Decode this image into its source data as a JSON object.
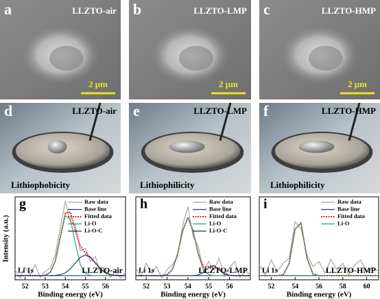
{
  "panels": [
    {
      "letter": "a",
      "label": "LLZTO-air",
      "scale_bar": "2 μm"
    },
    {
      "letter": "b",
      "label": "LLZTO-LMP",
      "scale_bar": "2 μm"
    },
    {
      "letter": "c",
      "label": "LLZTO-HMP",
      "scale_bar": "2 μm"
    }
  ],
  "photos": [
    {
      "letter": "d",
      "label": "LLZTO-air",
      "caption": "Lithiophobicity"
    },
    {
      "letter": "e",
      "label": "LLZTO-LMP",
      "caption": "Lithiophilicity"
    },
    {
      "letter": "f",
      "label": "LLZTO-HMP",
      "caption": "Lithiophilicity"
    }
  ],
  "y_axis_label": "Intensity (a.u.)",
  "chart_data": [
    {
      "type": "line",
      "letter": "g",
      "xlabel": "Binding energy (eV)",
      "annotations": [
        "Li 1s",
        "LLZTO-air"
      ],
      "x": [
        51.5,
        51.75,
        52,
        52.25,
        52.5,
        52.75,
        53,
        53.25,
        53.5,
        53.75,
        54,
        54.25,
        54.5,
        54.75,
        55,
        55.25,
        55.5,
        55.75,
        56,
        56.25,
        56.5,
        56.75,
        57
      ],
      "xlim": [
        51.5,
        57
      ],
      "xticks": [
        52,
        53,
        54,
        55,
        56
      ],
      "ylim": [
        0,
        100
      ],
      "series": [
        {
          "name": "Raw data",
          "color": "#a0a0a0",
          "style": "solid",
          "values": [
            12,
            2,
            15,
            6,
            18,
            3,
            10,
            14,
            30,
            62,
            95,
            70,
            66,
            35,
            38,
            22,
            28,
            8,
            14,
            3,
            10,
            2,
            9
          ]
        },
        {
          "name": "Base line",
          "color": "#1f3a7a",
          "style": "solid",
          "values": [
            5,
            5,
            5,
            5,
            5,
            5,
            5,
            5,
            5,
            5,
            5,
            5,
            5,
            5,
            5,
            5,
            5,
            5,
            5,
            5,
            5,
            5,
            5
          ]
        },
        {
          "name": "Fitted data",
          "color": "#e0202a",
          "style": "dotted",
          "values": [
            5,
            5,
            5,
            5,
            5,
            5,
            5.5,
            8.9,
            22.5,
            51.6,
            80.4,
            81.5,
            59.2,
            40.4,
            32.7,
            27.3,
            20.2,
            13.1,
            8.4,
            6.1,
            5.3,
            5,
            5
          ]
        },
        {
          "name": "Li-O",
          "color": "#2e9e6a",
          "style": "solid",
          "values": [
            5,
            5,
            5,
            5,
            5,
            5,
            5.5,
            8.9,
            22.2,
            50.5,
            77,
            73.4,
            44,
            18.4,
            7.7,
            5.3,
            5,
            5,
            5,
            5,
            5,
            5,
            5
          ]
        },
        {
          "name": "Li-O-C",
          "color": "#1a2a6c",
          "style": "solid",
          "values": [
            5,
            5,
            5,
            5,
            5,
            5,
            5,
            5,
            5.3,
            6.1,
            8.4,
            13.1,
            20.2,
            27,
            30,
            27,
            20.2,
            13.1,
            8.4,
            6.1,
            5.3,
            5,
            5
          ]
        }
      ]
    },
    {
      "type": "line",
      "letter": "h",
      "xlabel": "Binding energy (eV)",
      "annotations": [
        "Li 1s",
        "LLZTO-LMP"
      ],
      "x": [
        51.5,
        51.75,
        52,
        52.25,
        52.5,
        52.75,
        53,
        53.25,
        53.5,
        53.75,
        54,
        54.25,
        54.5,
        54.75,
        55,
        55.25,
        55.5,
        55.75,
        56,
        56.25,
        56.5,
        56.75,
        57
      ],
      "xlim": [
        51.5,
        57
      ],
      "xticks": [
        52,
        53,
        54,
        55,
        56
      ],
      "ylim": [
        0,
        100
      ],
      "series": [
        {
          "name": "Raw data",
          "color": "#a0a0a0",
          "style": "solid",
          "values": [
            14,
            4,
            20,
            8,
            16,
            2,
            12,
            18,
            28,
            66,
            88,
            52,
            40,
            10,
            22,
            12,
            26,
            4,
            15,
            22,
            3,
            11,
            6
          ]
        },
        {
          "name": "Base line",
          "color": "#1f3a7a",
          "style": "solid",
          "values": [
            5,
            5,
            5,
            5,
            5,
            5,
            5,
            5,
            5,
            5,
            5,
            5,
            5,
            5,
            5,
            5,
            5,
            5,
            5,
            5,
            5,
            5,
            5
          ]
        },
        {
          "name": "Fitted data",
          "color": "#e0202a",
          "style": "dotted",
          "values": [
            5,
            5,
            5,
            5,
            5,
            5,
            6.2,
            12,
            30.2,
            59,
            75,
            59,
            31,
            15.9,
            15.8,
            17,
            12.3,
            7.2,
            5.3,
            5,
            5,
            5,
            5
          ]
        },
        {
          "name": "Li-O",
          "color": "#2e9e6a",
          "style": "solid",
          "values": [
            5,
            5,
            5,
            5,
            5,
            5,
            6.2,
            12,
            30.2,
            59,
            75,
            59,
            30.2,
            12,
            6.2,
            5,
            5,
            5,
            5,
            5,
            5,
            5,
            5
          ]
        },
        {
          "name": "Li-O-C",
          "color": "#1a2a6c",
          "style": "solid",
          "values": [
            5,
            5,
            5,
            5,
            5,
            5,
            5,
            5,
            5,
            5,
            5,
            5,
            5.8,
            8.9,
            14.6,
            17,
            12.3,
            7.2,
            5.3,
            5,
            5,
            5,
            5
          ]
        }
      ]
    },
    {
      "type": "line",
      "letter": "i",
      "xlabel": "Binding energy (eV)",
      "annotations": [
        "Li 1s",
        "LLZTO-HMP"
      ],
      "x": [
        51,
        51.5,
        52,
        52.5,
        53,
        53.5,
        54,
        54.5,
        55,
        55.5,
        56,
        56.5,
        57,
        57.5,
        58,
        58.5,
        59,
        59.5,
        60,
        60.5,
        61
      ],
      "xlim": [
        51,
        61
      ],
      "xticks": [
        52,
        54,
        56,
        58,
        60
      ],
      "ylim": [
        0,
        100
      ],
      "series": [
        {
          "name": "Raw data",
          "color": "#a0a0a0",
          "style": "solid",
          "values": [
            18,
            6,
            24,
            10,
            20,
            26,
            70,
            62,
            30,
            16,
            22,
            8,
            25,
            12,
            20,
            6,
            18,
            24,
            9,
            15,
            10
          ]
        },
        {
          "name": "Base line",
          "color": "#1f3a7a",
          "style": "solid",
          "values": [
            5,
            5,
            5,
            5,
            5,
            5,
            5,
            5,
            5,
            5,
            5,
            5,
            5,
            5,
            5,
            5,
            5,
            5,
            5,
            5,
            5
          ]
        },
        {
          "name": "Fitted data",
          "color": "#e0202a",
          "style": "dotted",
          "values": [
            5,
            5,
            5,
            5,
            6,
            19.4,
            61,
            68.4,
            26,
            7,
            5,
            5,
            5,
            5,
            5,
            5,
            5,
            5,
            5,
            5,
            5
          ]
        },
        {
          "name": "Li-O",
          "color": "#2e9e6a",
          "style": "solid",
          "values": [
            5,
            5,
            5,
            5,
            6,
            19.4,
            61,
            68.4,
            26,
            7,
            5,
            5,
            5,
            5,
            5,
            5,
            5,
            5,
            5,
            5,
            5
          ]
        }
      ]
    }
  ]
}
